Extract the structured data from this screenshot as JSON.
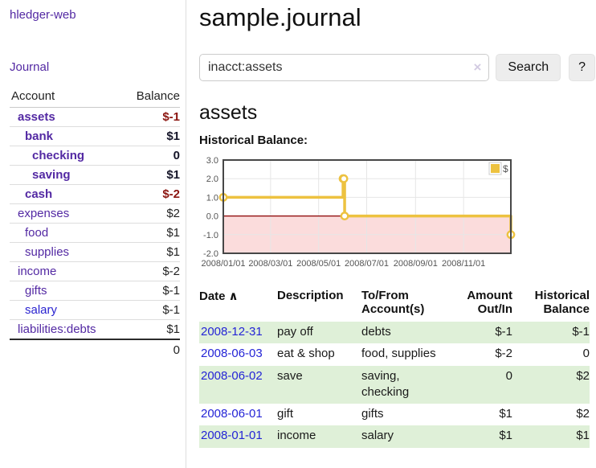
{
  "app": {
    "brand": "hledger-web",
    "nav": {
      "journal": "Journal"
    }
  },
  "sidebar": {
    "accounts_header": {
      "account": "Account",
      "balance": "Balance"
    },
    "accounts": [
      {
        "label": "assets",
        "balance": "$-1",
        "depth": 1,
        "strong": true,
        "negative": true,
        "visited": false
      },
      {
        "label": "bank",
        "balance": "$1",
        "depth": 2,
        "strong": true,
        "negative": false,
        "visited": false
      },
      {
        "label": "checking",
        "balance": "0",
        "depth": 3,
        "strong": true,
        "negative": false,
        "visited": false
      },
      {
        "label": "saving",
        "balance": "$1",
        "depth": 3,
        "strong": true,
        "negative": false,
        "visited": false
      },
      {
        "label": "cash",
        "balance": "$-2",
        "depth": 2,
        "strong": true,
        "negative": true,
        "visited": false
      },
      {
        "label": "expenses",
        "balance": "$2",
        "depth": 1,
        "strong": false,
        "negative": false,
        "visited": false
      },
      {
        "label": "food",
        "balance": "$1",
        "depth": 2,
        "strong": false,
        "negative": false,
        "visited": false
      },
      {
        "label": "supplies",
        "balance": "$1",
        "depth": 2,
        "strong": false,
        "negative": false,
        "visited": false
      },
      {
        "label": "income",
        "balance": "$-2",
        "depth": 1,
        "strong": false,
        "negative": true,
        "visited": false
      },
      {
        "label": "gifts",
        "balance": "$-1",
        "depth": 2,
        "strong": false,
        "negative": true,
        "visited": false
      },
      {
        "label": "salary",
        "balance": "$-1",
        "depth": 2,
        "strong": false,
        "negative": true,
        "visited": true
      },
      {
        "label": "liabilities:debts",
        "balance": "$1",
        "depth": 1,
        "strong": false,
        "negative": false,
        "visited": false
      }
    ],
    "total": "0"
  },
  "header": {
    "title": "sample.journal"
  },
  "search": {
    "value": "inacct:assets",
    "clear_icon": "×",
    "button": "Search",
    "help_button": "?"
  },
  "account_page": {
    "heading": "assets",
    "chart_label": "Historical Balance:"
  },
  "chart_data": {
    "type": "line",
    "step": true,
    "series": [
      {
        "name": "$",
        "points": [
          [
            "2008-01-01",
            1
          ],
          [
            "2008-06-01",
            2
          ],
          [
            "2008-06-02",
            2
          ],
          [
            "2008-06-03",
            0
          ],
          [
            "2008-12-31",
            -1
          ]
        ]
      }
    ],
    "x_ticks": [
      "2008/01/01",
      "2008/03/01",
      "2008/05/01",
      "2008/07/01",
      "2008/09/01",
      "2008/11/01"
    ],
    "y_ticks": [
      3,
      2,
      1,
      0,
      -1,
      -2
    ],
    "x_range": [
      "2008-01-01",
      "2008-12-31"
    ],
    "ylim": [
      -2,
      3
    ],
    "grid": true,
    "legend": [
      "$"
    ],
    "legend_position": "top-right",
    "line_color": "#edc240",
    "marker": "open-circle",
    "negative_region_color": "#fbdcdc",
    "zero_line_color": "#8b0000",
    "grid_color": "#e6e6e6",
    "border_color": "#474747",
    "tick_text_color": "#545454"
  },
  "register": {
    "columns": [
      "Date",
      "Description",
      "To/From Account(s)",
      "Amount Out/In",
      "Historical Balance"
    ],
    "sort_icon": "∧",
    "rows": [
      {
        "date": "2008-12-31",
        "description": "pay off",
        "accounts": "debts",
        "amount": "$-1",
        "amount_negative": true,
        "balance": "$-1",
        "balance_negative": true
      },
      {
        "date": "2008-06-03",
        "description": "eat & shop",
        "accounts": "food, supplies",
        "amount": "$-2",
        "amount_negative": true,
        "balance": "0",
        "balance_negative": false
      },
      {
        "date": "2008-06-02",
        "description": "save",
        "accounts": "saving, checking",
        "amount": "0",
        "amount_negative": false,
        "balance": "$2",
        "balance_negative": false
      },
      {
        "date": "2008-06-01",
        "description": "gift",
        "accounts": "gifts",
        "amount": "$1",
        "amount_negative": false,
        "balance": "$2",
        "balance_negative": false
      },
      {
        "date": "2008-01-01",
        "description": "income",
        "accounts": "salary",
        "amount": "$1",
        "amount_negative": false,
        "balance": "$1",
        "balance_negative": false
      }
    ]
  },
  "colors": {
    "accent_purple": "#5329a3",
    "link_blue": "#2424d6",
    "negative_strong": "#8b1510",
    "negative_soft": "#c27f7f",
    "negative_table": "#9e2a25",
    "stripe_green": "#dff0d8",
    "chart_line_gold": "#edc240"
  }
}
